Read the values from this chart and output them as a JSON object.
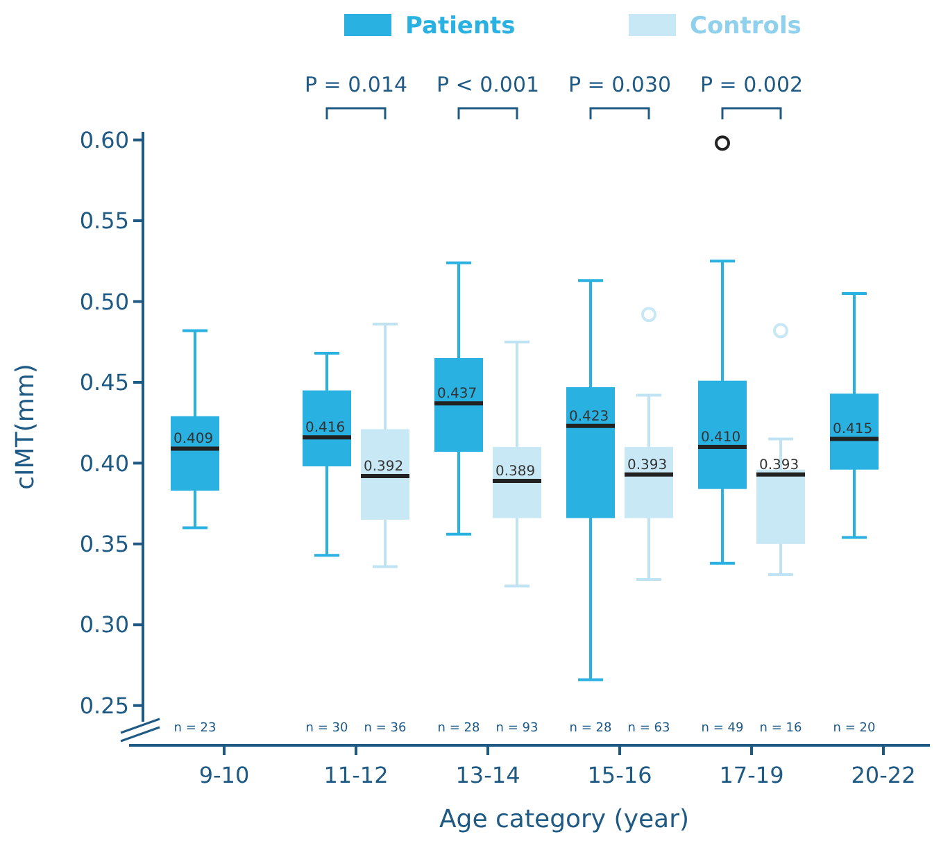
{
  "chart_data": {
    "type": "box",
    "xlabel": "Age category (year)",
    "ylabel": "cIMT(mm)",
    "categories": [
      "9-10",
      "11-12",
      "13-14",
      "15-16",
      "17-19",
      "20-22"
    ],
    "series": [
      {
        "name": "Patients",
        "color": "#29b1e1",
        "value_labels": [
          "0.409",
          "0.416",
          "0.437",
          "0.423",
          "0.410",
          "0.415"
        ],
        "boxes": [
          {
            "low": 0.36,
            "q1": 0.383,
            "median": 0.409,
            "q3": 0.429,
            "high": 0.482
          },
          {
            "low": 0.343,
            "q1": 0.398,
            "median": 0.416,
            "q3": 0.445,
            "high": 0.468
          },
          {
            "low": 0.356,
            "q1": 0.407,
            "median": 0.437,
            "q3": 0.465,
            "high": 0.524
          },
          {
            "low": 0.266,
            "q1": 0.366,
            "median": 0.423,
            "q3": 0.447,
            "high": 0.513
          },
          {
            "low": 0.338,
            "q1": 0.384,
            "median": 0.41,
            "q3": 0.451,
            "high": 0.525,
            "outliers": [
              0.598
            ]
          },
          {
            "low": 0.354,
            "q1": 0.396,
            "median": 0.415,
            "q3": 0.443,
            "high": 0.505
          }
        ]
      },
      {
        "name": "Controls",
        "color": "#c9e8f5",
        "value_labels": [
          null,
          "0.392",
          "0.389",
          "0.393",
          "0.393",
          null
        ],
        "boxes": [
          null,
          {
            "low": 0.336,
            "q1": 0.365,
            "median": 0.392,
            "q3": 0.421,
            "high": 0.486
          },
          {
            "low": 0.324,
            "q1": 0.366,
            "median": 0.389,
            "q3": 0.41,
            "high": 0.475
          },
          {
            "low": 0.328,
            "q1": 0.366,
            "median": 0.393,
            "q3": 0.41,
            "high": 0.442,
            "outliers": [
              0.492
            ]
          },
          {
            "low": 0.331,
            "q1": 0.35,
            "median": 0.393,
            "q3": 0.396,
            "high": 0.415,
            "outliers": [
              0.482
            ]
          },
          null
        ]
      }
    ],
    "ylim": [
      0.24,
      0.605
    ],
    "yticks": [
      {
        "value": 0.25,
        "label": "0.25"
      },
      {
        "value": 0.3,
        "label": "0.30"
      },
      {
        "value": 0.35,
        "label": "0.35"
      },
      {
        "value": 0.4,
        "label": "0.40"
      },
      {
        "value": 0.45,
        "label": "0.45"
      },
      {
        "value": 0.5,
        "label": "0.50"
      },
      {
        "value": 0.55,
        "label": "0.55"
      },
      {
        "value": 0.6,
        "label": "0.60"
      }
    ],
    "grid": false,
    "legend": "top",
    "annotations": [
      "n = 23",
      "n = 30",
      "n = 36",
      "n = 28",
      "n = 93",
      "n = 28",
      "n = 63",
      "n = 49",
      "n = 16",
      "n = 20",
      "P = 0.014",
      "P < 0.001",
      "P = 0.030",
      "P = 0.002"
    ]
  }
}
